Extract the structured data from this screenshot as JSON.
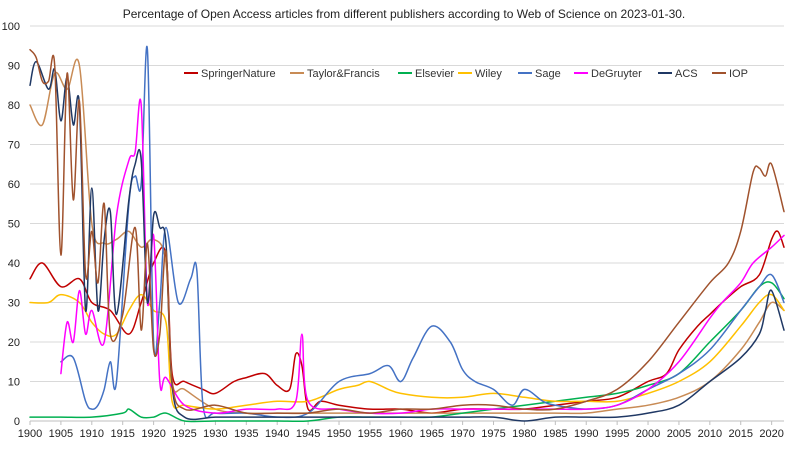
{
  "chart_data": {
    "type": "line",
    "title": "Percentage of Open Access articles from different publishers according to Web of Science on 2023-01-30.",
    "xlabel": "",
    "ylabel": "",
    "xlim": [
      1900,
      2022
    ],
    "ylim": [
      0,
      100
    ],
    "x_ticks": [
      1900,
      1905,
      1910,
      1915,
      1920,
      1925,
      1930,
      1935,
      1940,
      1945,
      1950,
      1955,
      1960,
      1965,
      1970,
      1975,
      1980,
      1985,
      1990,
      1995,
      2000,
      2005,
      2010,
      2015,
      2020
    ],
    "y_ticks": [
      0,
      10,
      20,
      30,
      40,
      50,
      60,
      70,
      80,
      90,
      100
    ],
    "grid": true,
    "legend_position": "top",
    "series": [
      {
        "name": "SpringerNature",
        "color": "#c00000",
        "x": [
          1900,
          1902,
          1905,
          1908,
          1910,
          1913,
          1916,
          1918,
          1920,
          1922,
          1923,
          1925,
          1928,
          1930,
          1933,
          1935,
          1938,
          1940,
          1942,
          1943,
          1944,
          1945,
          1947,
          1950,
          1955,
          1960,
          1965,
          1970,
          1975,
          1980,
          1985,
          1990,
          1995,
          2000,
          2003,
          2005,
          2008,
          2010,
          2012,
          2015,
          2018,
          2020,
          2021,
          2022
        ],
        "y": [
          36,
          40,
          34,
          36,
          30,
          28,
          22,
          30,
          40,
          42,
          12,
          10,
          8,
          7,
          10,
          11,
          12,
          9,
          8,
          17,
          14,
          3,
          5,
          4,
          3,
          3,
          2,
          3,
          3,
          3,
          4,
          5,
          6,
          10,
          12,
          18,
          24,
          27,
          30,
          34,
          37,
          46,
          48,
          44
        ]
      },
      {
        "name": "Taylor&Francis",
        "color": "#c88b55",
        "x": [
          1900,
          1902,
          1904,
          1906,
          1908,
          1910,
          1912,
          1914,
          1916,
          1918,
          1920,
          1922,
          1923,
          1925,
          1930,
          1935,
          1940,
          1945,
          1950,
          1955,
          1960,
          1965,
          1970,
          1975,
          1980,
          1985,
          1990,
          1995,
          2000,
          2005,
          2010,
          2015,
          2018,
          2020,
          2022
        ],
        "y": [
          80,
          75,
          88,
          84,
          90,
          50,
          45,
          46,
          48,
          44,
          46,
          40,
          10,
          8,
          3,
          2,
          2,
          2,
          2,
          2,
          2,
          2,
          2,
          2,
          2,
          2,
          2,
          3,
          4,
          6,
          10,
          18,
          25,
          30,
          28
        ]
      },
      {
        "name": "Elsevier",
        "color": "#00b050",
        "x": [
          1900,
          1905,
          1910,
          1915,
          1916,
          1918,
          1920,
          1922,
          1925,
          1930,
          1935,
          1940,
          1945,
          1950,
          1955,
          1960,
          1965,
          1970,
          1975,
          1980,
          1985,
          1990,
          1995,
          2000,
          2005,
          2010,
          2015,
          2018,
          2020,
          2022
        ],
        "y": [
          1,
          1,
          1,
          2,
          3,
          1,
          1,
          2,
          0,
          0,
          0,
          0,
          0,
          1,
          1,
          1,
          1,
          2,
          3,
          4,
          5,
          6,
          7,
          9,
          12,
          20,
          28,
          34,
          35,
          31
        ]
      },
      {
        "name": "Wiley",
        "color": "#ffc000",
        "x": [
          1900,
          1903,
          1905,
          1908,
          1910,
          1912,
          1914,
          1916,
          1918,
          1920,
          1922,
          1923,
          1925,
          1930,
          1935,
          1940,
          1945,
          1950,
          1953,
          1955,
          1958,
          1960,
          1965,
          1970,
          1975,
          1980,
          1985,
          1990,
          1995,
          2000,
          2005,
          2010,
          2015,
          2018,
          2020,
          2022
        ],
        "y": [
          30,
          30,
          32,
          30,
          25,
          22,
          22,
          28,
          32,
          28,
          25,
          5,
          4,
          3,
          4,
          5,
          5,
          8,
          9,
          10,
          8,
          7,
          6,
          6,
          7,
          6,
          5,
          5,
          5,
          7,
          10,
          15,
          24,
          30,
          32,
          28
        ]
      },
      {
        "name": "Sage",
        "color": "#4472c4",
        "x": [
          1905,
          1907,
          1909,
          1910,
          1911,
          1912,
          1913,
          1914,
          1916,
          1917,
          1918,
          1919,
          1920,
          1921,
          1922,
          1924,
          1926,
          1927,
          1928,
          1930,
          1935,
          1940,
          1945,
          1950,
          1955,
          1958,
          1960,
          1962,
          1965,
          1968,
          1970,
          1972,
          1975,
          1978,
          1980,
          1983,
          1985,
          1990,
          1995,
          2000,
          2005,
          2010,
          2015,
          2018,
          2020,
          2022
        ],
        "y": [
          15,
          16,
          5,
          3,
          4,
          8,
          15,
          10,
          55,
          62,
          60,
          94,
          20,
          30,
          49,
          30,
          36,
          38,
          4,
          2,
          2,
          1,
          2,
          10,
          12,
          14,
          10,
          16,
          24,
          20,
          13,
          10,
          8,
          4,
          8,
          5,
          4,
          3,
          4,
          8,
          12,
          18,
          28,
          34,
          37,
          30
        ]
      },
      {
        "name": "DeGruyter",
        "color": "#ff00ff",
        "x": [
          1905,
          1906,
          1907,
          1908,
          1909,
          1910,
          1912,
          1914,
          1916,
          1917,
          1918,
          1919,
          1920,
          1921,
          1922,
          1925,
          1930,
          1935,
          1940,
          1943,
          1944,
          1945,
          1950,
          1955,
          1960,
          1965,
          1970,
          1975,
          1980,
          1985,
          1990,
          1995,
          2000,
          2005,
          2010,
          2012,
          2015,
          2017,
          2020,
          2022
        ],
        "y": [
          12,
          25,
          20,
          33,
          22,
          28,
          20,
          52,
          66,
          68,
          80,
          30,
          47,
          10,
          11,
          4,
          2,
          3,
          3,
          5,
          22,
          5,
          3,
          2,
          2,
          3,
          3,
          3,
          3,
          3,
          3,
          4,
          8,
          15,
          26,
          30,
          35,
          40,
          44,
          47
        ]
      },
      {
        "name": "ACS",
        "color": "#1f3864",
        "x": [
          1900,
          1901,
          1903,
          1904,
          1905,
          1906,
          1907,
          1908,
          1909,
          1910,
          1911,
          1912,
          1913,
          1914,
          1916,
          1917,
          1918,
          1919,
          1920,
          1921,
          1922,
          1923,
          1925,
          1930,
          1935,
          1940,
          1945,
          1950,
          1955,
          1960,
          1965,
          1970,
          1975,
          1980,
          1985,
          1990,
          1995,
          2000,
          2005,
          2010,
          2015,
          2018,
          2019,
          2020,
          2022
        ],
        "y": [
          85,
          91,
          84,
          89,
          76,
          87,
          75,
          80,
          28,
          59,
          28,
          46,
          53,
          27,
          56,
          65,
          66,
          30,
          52,
          49,
          45,
          9,
          1,
          1,
          1,
          1,
          1,
          1,
          1,
          1,
          1,
          1,
          1,
          0,
          1,
          1,
          1,
          2,
          4,
          10,
          16,
          22,
          28,
          33,
          23
        ]
      },
      {
        "name": "IOP",
        "color": "#a0522d",
        "x": [
          1900,
          1901,
          1902,
          1903,
          1904,
          1905,
          1906,
          1907,
          1908,
          1909,
          1910,
          1911,
          1912,
          1913,
          1915,
          1917,
          1918,
          1919,
          1920,
          1921,
          1922,
          1923,
          1925,
          1930,
          1935,
          1940,
          1945,
          1950,
          1955,
          1960,
          1965,
          1970,
          1975,
          1980,
          1985,
          1990,
          1995,
          2000,
          2005,
          2010,
          2013,
          2015,
          2017,
          2018,
          2019,
          2020,
          2022
        ],
        "y": [
          94,
          92,
          86,
          86,
          90,
          42,
          88,
          56,
          81,
          37,
          48,
          35,
          55,
          22,
          27,
          49,
          23,
          45,
          18,
          22,
          43,
          10,
          3,
          4,
          2,
          2,
          2,
          3,
          2,
          3,
          3,
          4,
          4,
          3,
          3,
          5,
          8,
          15,
          25,
          35,
          40,
          48,
          63,
          64,
          62,
          65,
          53
        ]
      }
    ]
  }
}
